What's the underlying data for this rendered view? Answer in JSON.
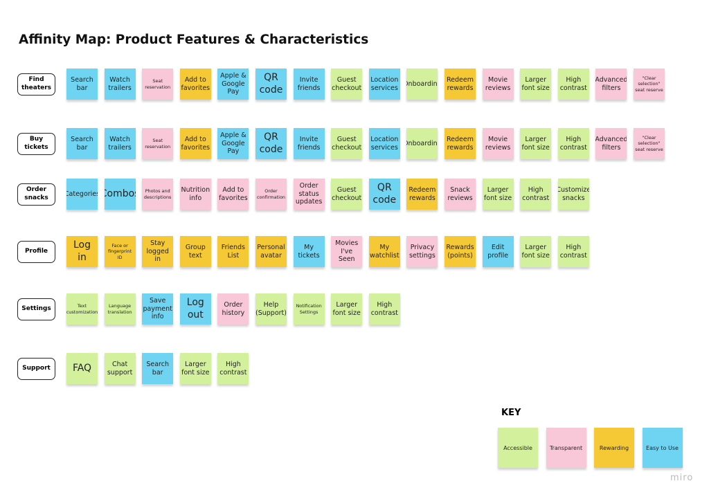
{
  "title": "Affinity Map: Product Features & Characteristics",
  "rows": [
    {
      "label": "Find theaters",
      "notes": [
        {
          "text": "Search bar",
          "color": "#6fd4f2"
        },
        {
          "text": "Watch trailers",
          "color": "#6fd4f2"
        },
        {
          "text": "Seat reservation",
          "color": "#f8c7d8"
        },
        {
          "text": "Add to favorites",
          "color": "#f5c836"
        },
        {
          "text": "Apple & Google Pay",
          "color": "#6fd4f2"
        },
        {
          "text": "QR code",
          "color": "#6fd4f2"
        },
        {
          "text": "Invite friends",
          "color": "#6fd4f2"
        },
        {
          "text": "Guest checkout",
          "color": "#d3f19d"
        },
        {
          "text": "Location services",
          "color": "#6fd4f2"
        },
        {
          "text": "Onboarding",
          "color": "#d3f19d"
        },
        {
          "text": "Redeem rewards",
          "color": "#f5c836"
        },
        {
          "text": "Movie reviews",
          "color": "#f8c7d8"
        },
        {
          "text": "Larger font size",
          "color": "#d3f19d"
        },
        {
          "text": "High contrast",
          "color": "#d3f19d"
        },
        {
          "text": "Advanced filters",
          "color": "#f8c7d8"
        },
        {
          "text": "\"Clear selection\" seat reserve",
          "color": "#f8c7d8"
        }
      ]
    },
    {
      "label": "Buy tickets",
      "notes": [
        {
          "text": "Search bar",
          "color": "#6fd4f2"
        },
        {
          "text": "Watch trailers",
          "color": "#6fd4f2"
        },
        {
          "text": "Seat reservation",
          "color": "#f8c7d8"
        },
        {
          "text": "Add to favorites",
          "color": "#f5c836"
        },
        {
          "text": "Apple & Google Pay",
          "color": "#6fd4f2"
        },
        {
          "text": "QR code",
          "color": "#6fd4f2"
        },
        {
          "text": "Invite friends",
          "color": "#6fd4f2"
        },
        {
          "text": "Guest checkout",
          "color": "#d3f19d"
        },
        {
          "text": "Location services",
          "color": "#6fd4f2"
        },
        {
          "text": "Onboarding",
          "color": "#d3f19d"
        },
        {
          "text": "Redeem rewards",
          "color": "#f5c836"
        },
        {
          "text": "Movie reviews",
          "color": "#f8c7d8"
        },
        {
          "text": "Larger font size",
          "color": "#d3f19d"
        },
        {
          "text": "High contrast",
          "color": "#d3f19d"
        },
        {
          "text": "Advanced filters",
          "color": "#f8c7d8"
        },
        {
          "text": "\"Clear selection\" seat reserve",
          "color": "#f8c7d8"
        }
      ]
    },
    {
      "label": "Order snacks",
      "notes": [
        {
          "text": "Categories",
          "color": "#6fd4f2"
        },
        {
          "text": "Combos",
          "color": "#6fd4f2"
        },
        {
          "text": "Photos and descriptions",
          "color": "#f8c7d8"
        },
        {
          "text": "Nutrition info",
          "color": "#f8c7d8"
        },
        {
          "text": "Add to favorites",
          "color": "#f8c7d8"
        },
        {
          "text": "Order confirmation",
          "color": "#f8c7d8"
        },
        {
          "text": "Order status updates",
          "color": "#f8c7d8"
        },
        {
          "text": "Guest checkout",
          "color": "#d3f19d"
        },
        {
          "text": "QR code",
          "color": "#6fd4f2"
        },
        {
          "text": "Redeem rewards",
          "color": "#f5c836"
        },
        {
          "text": "Snack reviews",
          "color": "#f8c7d8"
        },
        {
          "text": "Larger font size",
          "color": "#d3f19d"
        },
        {
          "text": "High contrast",
          "color": "#d3f19d"
        },
        {
          "text": "Customize snacks",
          "color": "#d3f19d"
        }
      ]
    },
    {
      "label": "Profile",
      "notes": [
        {
          "text": "Log in",
          "color": "#f5c836"
        },
        {
          "text": "Face or fingerprint ID",
          "color": "#f5c836"
        },
        {
          "text": "Stay logged in",
          "color": "#f5c836"
        },
        {
          "text": "Group text",
          "color": "#f5c836"
        },
        {
          "text": "Friends List",
          "color": "#f5c836"
        },
        {
          "text": "Personal avatar",
          "color": "#f5c836"
        },
        {
          "text": "My tickets",
          "color": "#6fd4f2"
        },
        {
          "text": "Movies I've Seen",
          "color": "#f8c7d8"
        },
        {
          "text": "My watchlist",
          "color": "#f5c836"
        },
        {
          "text": "Privacy settings",
          "color": "#f8c7d8"
        },
        {
          "text": "Rewards (points)",
          "color": "#f5c836"
        },
        {
          "text": "Edit profile",
          "color": "#6fd4f2"
        },
        {
          "text": "Larger font size",
          "color": "#d3f19d"
        },
        {
          "text": "High contrast",
          "color": "#d3f19d"
        }
      ]
    },
    {
      "label": "Settings",
      "notes": [
        {
          "text": "Text customization",
          "color": "#d3f19d"
        },
        {
          "text": "Language translation",
          "color": "#d3f19d"
        },
        {
          "text": "Save payment info",
          "color": "#6fd4f2"
        },
        {
          "text": "Log out",
          "color": "#6fd4f2"
        },
        {
          "text": "Order history",
          "color": "#f8c7d8"
        },
        {
          "text": "Help (Support)",
          "color": "#d3f19d"
        },
        {
          "text": "Notification Settings",
          "color": "#d3f19d"
        },
        {
          "text": "Larger font size",
          "color": "#d3f19d"
        },
        {
          "text": "High contrast",
          "color": "#d3f19d"
        }
      ]
    },
    {
      "label": "Support",
      "notes": [
        {
          "text": "FAQ",
          "color": "#d3f19d"
        },
        {
          "text": "Chat support",
          "color": "#d3f19d"
        },
        {
          "text": "Search bar",
          "color": "#6fd4f2"
        },
        {
          "text": "Larger font size",
          "color": "#d3f19d"
        },
        {
          "text": "High contrast",
          "color": "#d3f19d"
        }
      ]
    }
  ],
  "key": {
    "title": "KEY",
    "items": [
      {
        "label": "Accessible",
        "color": "#d3f19d"
      },
      {
        "label": "Transparent",
        "color": "#f8c7d8"
      },
      {
        "label": "Rewarding",
        "color": "#f5c836"
      },
      {
        "label": "Easy to Use",
        "color": "#6fd4f2"
      }
    ]
  },
  "watermark": "miro"
}
